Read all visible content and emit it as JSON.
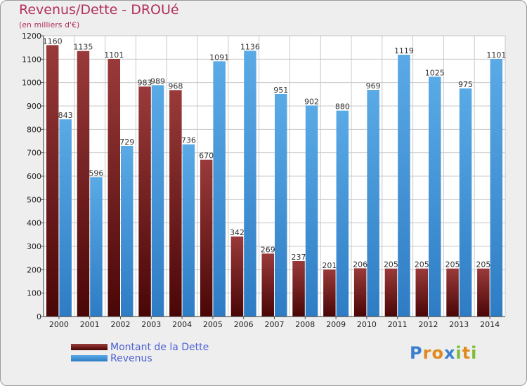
{
  "title": "Revenus/Dette - DROUé",
  "subtitle": "(en milliers d'€)",
  "logo_text": "Proxiti",
  "colors": {
    "dette_dark": "#4a0c0c",
    "dette_light": "#9a3a3a",
    "revenus_dark": "#2e7cc4",
    "revenus_light": "#5aaae6",
    "title": "#b2305a",
    "legend_text": "#4b5fd6"
  },
  "chart_data": {
    "type": "bar",
    "title": "Revenus/Dette - DROUé",
    "subtitle": "(en milliers d'€)",
    "xlabel": "",
    "ylabel": "",
    "ylim": [
      0,
      1200
    ],
    "yticks": [
      0,
      100,
      200,
      300,
      400,
      500,
      600,
      700,
      800,
      900,
      1000,
      1100,
      1200
    ],
    "grid": true,
    "legend_position": "bottom-left",
    "categories": [
      "2000",
      "2001",
      "2002",
      "2003",
      "2004",
      "2005",
      "2006",
      "2007",
      "2008",
      "2009",
      "2010",
      "2011",
      "2012",
      "2013",
      "2014"
    ],
    "series": [
      {
        "name": "Montant de la Dette",
        "values": [
          1160,
          1135,
          1101,
          983,
          968,
          670,
          342,
          269,
          237,
          201,
          206,
          205,
          205,
          205,
          205
        ]
      },
      {
        "name": "Revenus",
        "values": [
          843,
          596,
          729,
          989,
          736,
          1091,
          1136,
          951,
          902,
          880,
          969,
          1119,
          1025,
          975,
          1101
        ]
      }
    ]
  }
}
